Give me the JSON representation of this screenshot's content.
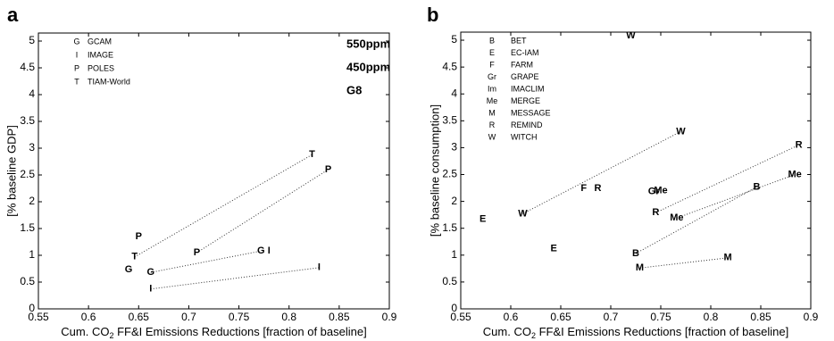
{
  "chart_data": [
    {
      "type": "scatter",
      "panel_label": "a",
      "xlabel": [
        "Cum. CO",
        "2",
        " FF&I Emissions Reductions [fraction of baseline]"
      ],
      "ylabel": "[% baseline GDP]",
      "xlim": [
        0.55,
        0.9
      ],
      "xticks": [
        0.55,
        0.6,
        0.65,
        0.7,
        0.75,
        0.8,
        0.85,
        0.9
      ],
      "ylim": [
        0,
        5.15
      ],
      "yticks": [
        0,
        0.5,
        1,
        1.5,
        2,
        2.5,
        3,
        3.5,
        4,
        4.5,
        5
      ],
      "model_legend": [
        {
          "code": "G",
          "name": "GCAM"
        },
        {
          "code": "I",
          "name": "IMAGE"
        },
        {
          "code": "P",
          "name": "POLES"
        },
        {
          "code": "T",
          "name": "TIAM-World"
        }
      ],
      "series": [
        {
          "name": "550ppm",
          "color": "#cc7a2e",
          "labels": [
            "T",
            "G",
            "P",
            "I"
          ],
          "x": [
            0.646,
            0.662,
            0.708,
            0.662
          ],
          "values": [
            0.97,
            0.68,
            1.05,
            0.37
          ]
        },
        {
          "name": "450ppm",
          "color": "#d2c53a",
          "labels": [
            "T",
            "P",
            "G",
            "I"
          ],
          "x": [
            0.823,
            0.839,
            0.772,
            0.83
          ],
          "values": [
            2.88,
            2.6,
            1.08,
            0.77
          ]
        },
        {
          "name": "G8",
          "color": "#4cd94c",
          "labels": [
            "P",
            "G",
            "I"
          ],
          "x": [
            0.65,
            0.64,
            0.78
          ],
          "values": [
            1.35,
            0.73,
            1.08
          ]
        }
      ]
    },
    {
      "type": "scatter",
      "panel_label": "b",
      "xlabel": [
        "Cum. CO",
        "2",
        " FF&I Emissions Reductions [fraction of baseline]"
      ],
      "ylabel": "[% baseline consumption]",
      "xlim": [
        0.55,
        0.9
      ],
      "xticks": [
        0.55,
        0.6,
        0.65,
        0.7,
        0.75,
        0.8,
        0.85,
        0.9
      ],
      "ylim": [
        0,
        5.15
      ],
      "yticks": [
        0,
        0.5,
        1,
        1.5,
        2,
        2.5,
        3,
        3.5,
        4,
        4.5,
        5
      ],
      "model_legend": [
        {
          "code": "B",
          "name": "BET"
        },
        {
          "code": "E",
          "name": "EC-IAM"
        },
        {
          "code": "F",
          "name": "FARM"
        },
        {
          "code": "Gr",
          "name": "GRAPE"
        },
        {
          "code": "Im",
          "name": "IMACLIM"
        },
        {
          "code": "Me",
          "name": "MERGE"
        },
        {
          "code": "M",
          "name": "MESSAGE"
        },
        {
          "code": "R",
          "name": "REMIND"
        },
        {
          "code": "W",
          "name": "WITCH"
        }
      ],
      "series": [
        {
          "color": "#cc7a2e",
          "labels": [
            "W",
            "F",
            "E",
            "R",
            "Me",
            "B",
            "M",
            "Gr"
          ],
          "x": [
            0.612,
            0.673,
            0.643,
            0.745,
            0.766,
            0.725,
            0.729,
            0.743
          ],
          "values": [
            1.77,
            2.24,
            1.12,
            1.79,
            1.69,
            1.03,
            0.76,
            2.18
          ]
        },
        {
          "color": "#d2c53a",
          "labels": [
            "W",
            "R",
            "Me",
            "B",
            "M"
          ],
          "x": [
            0.77,
            0.888,
            0.884,
            0.846,
            0.817
          ],
          "values": [
            3.3,
            3.05,
            2.5,
            2.27,
            0.95
          ]
        },
        {
          "color": "#4cd94c",
          "labels": [
            "W",
            "E",
            "R",
            "Me"
          ],
          "x": [
            0.72,
            0.572,
            0.687,
            0.75
          ],
          "values": [
            5.08,
            1.67,
            2.24,
            2.2
          ]
        }
      ]
    }
  ]
}
